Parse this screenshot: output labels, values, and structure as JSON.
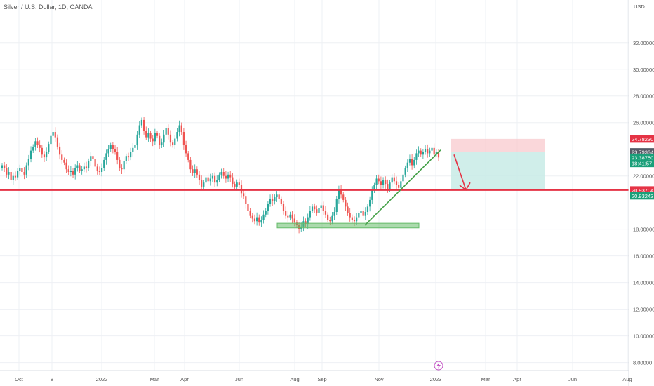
{
  "symbol_title": "Silver / U.S. Dollar, 1D, OANDA",
  "currency": "USD",
  "y_axis": {
    "min": 7.4,
    "max": 35.2,
    "ticks": [
      "32.00000",
      "30.00000",
      "28.00000",
      "26.00000",
      "22.00000",
      "18.00000",
      "16.00000",
      "14.00000",
      "12.00000",
      "10.00000",
      "8.00000"
    ],
    "tick_values": [
      32,
      30,
      28,
      26,
      22,
      18,
      16,
      14,
      12,
      10,
      8
    ]
  },
  "x_axis": {
    "labels": [
      "Oct",
      "8",
      "2022",
      "Mar",
      "Apr",
      "Jun",
      "Aug",
      "Sep",
      "Nov",
      "2023",
      "Mar",
      "Apr",
      "Jun",
      "Aug"
    ]
  },
  "price_badges": [
    {
      "label": "24.78230",
      "value": 24.7823,
      "color": "#e53345"
    },
    {
      "label": "23.79334",
      "value": 23.79334,
      "color": "#555a66"
    },
    {
      "label": "23.38750",
      "value": 23.3875,
      "color": "#1a9f79"
    },
    {
      "label": "18:41:57",
      "value": 22.95,
      "color": "#1a9f79"
    },
    {
      "label": "20.93704",
      "value": 20.93704,
      "color": "#e53345"
    },
    {
      "label": "20.93243",
      "value": 20.52,
      "color": "#1a9f79"
    }
  ],
  "colors": {
    "up": "#26a69a",
    "down": "#ef5350",
    "support_line": "#e53345",
    "support_zone": "#66bb6a",
    "trend_line": "#43a047",
    "stop_zone": "#f8c9ce",
    "target_zone": "#c8ebe6",
    "arrow": "#e53345",
    "grid": "#eef0f4"
  },
  "levels": {
    "support": 20.937,
    "support_zone_top": 18.45,
    "support_zone_bottom": 18.1,
    "entry": 23.79334,
    "stop": 24.7823,
    "target": 20.937
  },
  "icons": {
    "timescale_marker": "lightning-icon"
  },
  "chart_data": {
    "type": "candlestick",
    "symbol": "Silver / U.S. Dollar, 1D, OANDA",
    "y_ticks": [
      8,
      10,
      12,
      14,
      16,
      18,
      22,
      26,
      28,
      30,
      32
    ],
    "closes": [
      22.8,
      22.6,
      22.1,
      22.3,
      21.7,
      22.0,
      21.9,
      22.4,
      22.6,
      22.3,
      22.1,
      22.8,
      23.3,
      23.9,
      24.2,
      24.6,
      24.3,
      24.1,
      23.6,
      23.4,
      23.8,
      24.4,
      25.0,
      25.3,
      24.9,
      24.2,
      23.6,
      23.2,
      23.0,
      22.5,
      22.3,
      22.4,
      22.1,
      22.6,
      22.8,
      22.4,
      22.5,
      22.7,
      22.6,
      23.1,
      23.5,
      23.3,
      22.7,
      22.4,
      22.3,
      22.6,
      23.2,
      23.7,
      24.0,
      24.3,
      24.0,
      23.8,
      23.2,
      22.6,
      22.5,
      23.1,
      23.5,
      23.4,
      23.8,
      24.1,
      24.3,
      25.1,
      25.8,
      26.2,
      25.4,
      24.9,
      25.2,
      24.8,
      24.6,
      25.2,
      25.0,
      24.3,
      24.5,
      25.1,
      25.6,
      25.1,
      24.5,
      24.3,
      24.8,
      25.3,
      25.8,
      25.3,
      24.3,
      23.7,
      23.2,
      22.5,
      22.2,
      22.5,
      22.1,
      21.7,
      21.2,
      21.5,
      21.9,
      21.6,
      21.8,
      22.0,
      21.5,
      21.7,
      22.1,
      22.3,
      22.0,
      21.8,
      22.1,
      21.9,
      21.4,
      21.2,
      21.5,
      21.3,
      20.7,
      20.5,
      19.9,
      19.4,
      19.0,
      18.8,
      18.6,
      18.9,
      18.5,
      18.7,
      19.1,
      19.4,
      19.9,
      20.3,
      20.1,
      20.4,
      20.6,
      20.3,
      19.9,
      19.4,
      19.0,
      18.9,
      19.1,
      18.8,
      18.5,
      18.3,
      18.0,
      18.2,
      18.6,
      18.4,
      18.9,
      19.4,
      19.7,
      19.5,
      19.2,
      19.6,
      19.8,
      19.4,
      19.1,
      18.7,
      18.6,
      19.0,
      19.3,
      20.3,
      21.0,
      20.6,
      20.2,
      19.7,
      19.2,
      18.9,
      18.7,
      18.6,
      18.9,
      19.2,
      19.4,
      19.0,
      19.3,
      19.7,
      20.2,
      20.9,
      21.3,
      21.8,
      21.6,
      21.3,
      21.7,
      21.4,
      21.0,
      21.5,
      21.9,
      21.6,
      21.3,
      21.1,
      21.6,
      22.1,
      22.6,
      23.0,
      23.3,
      22.8,
      23.2,
      23.7,
      23.9,
      23.6,
      23.8,
      24.0,
      23.7,
      23.9,
      24.1,
      23.6,
      23.8,
      23.39
    ]
  }
}
